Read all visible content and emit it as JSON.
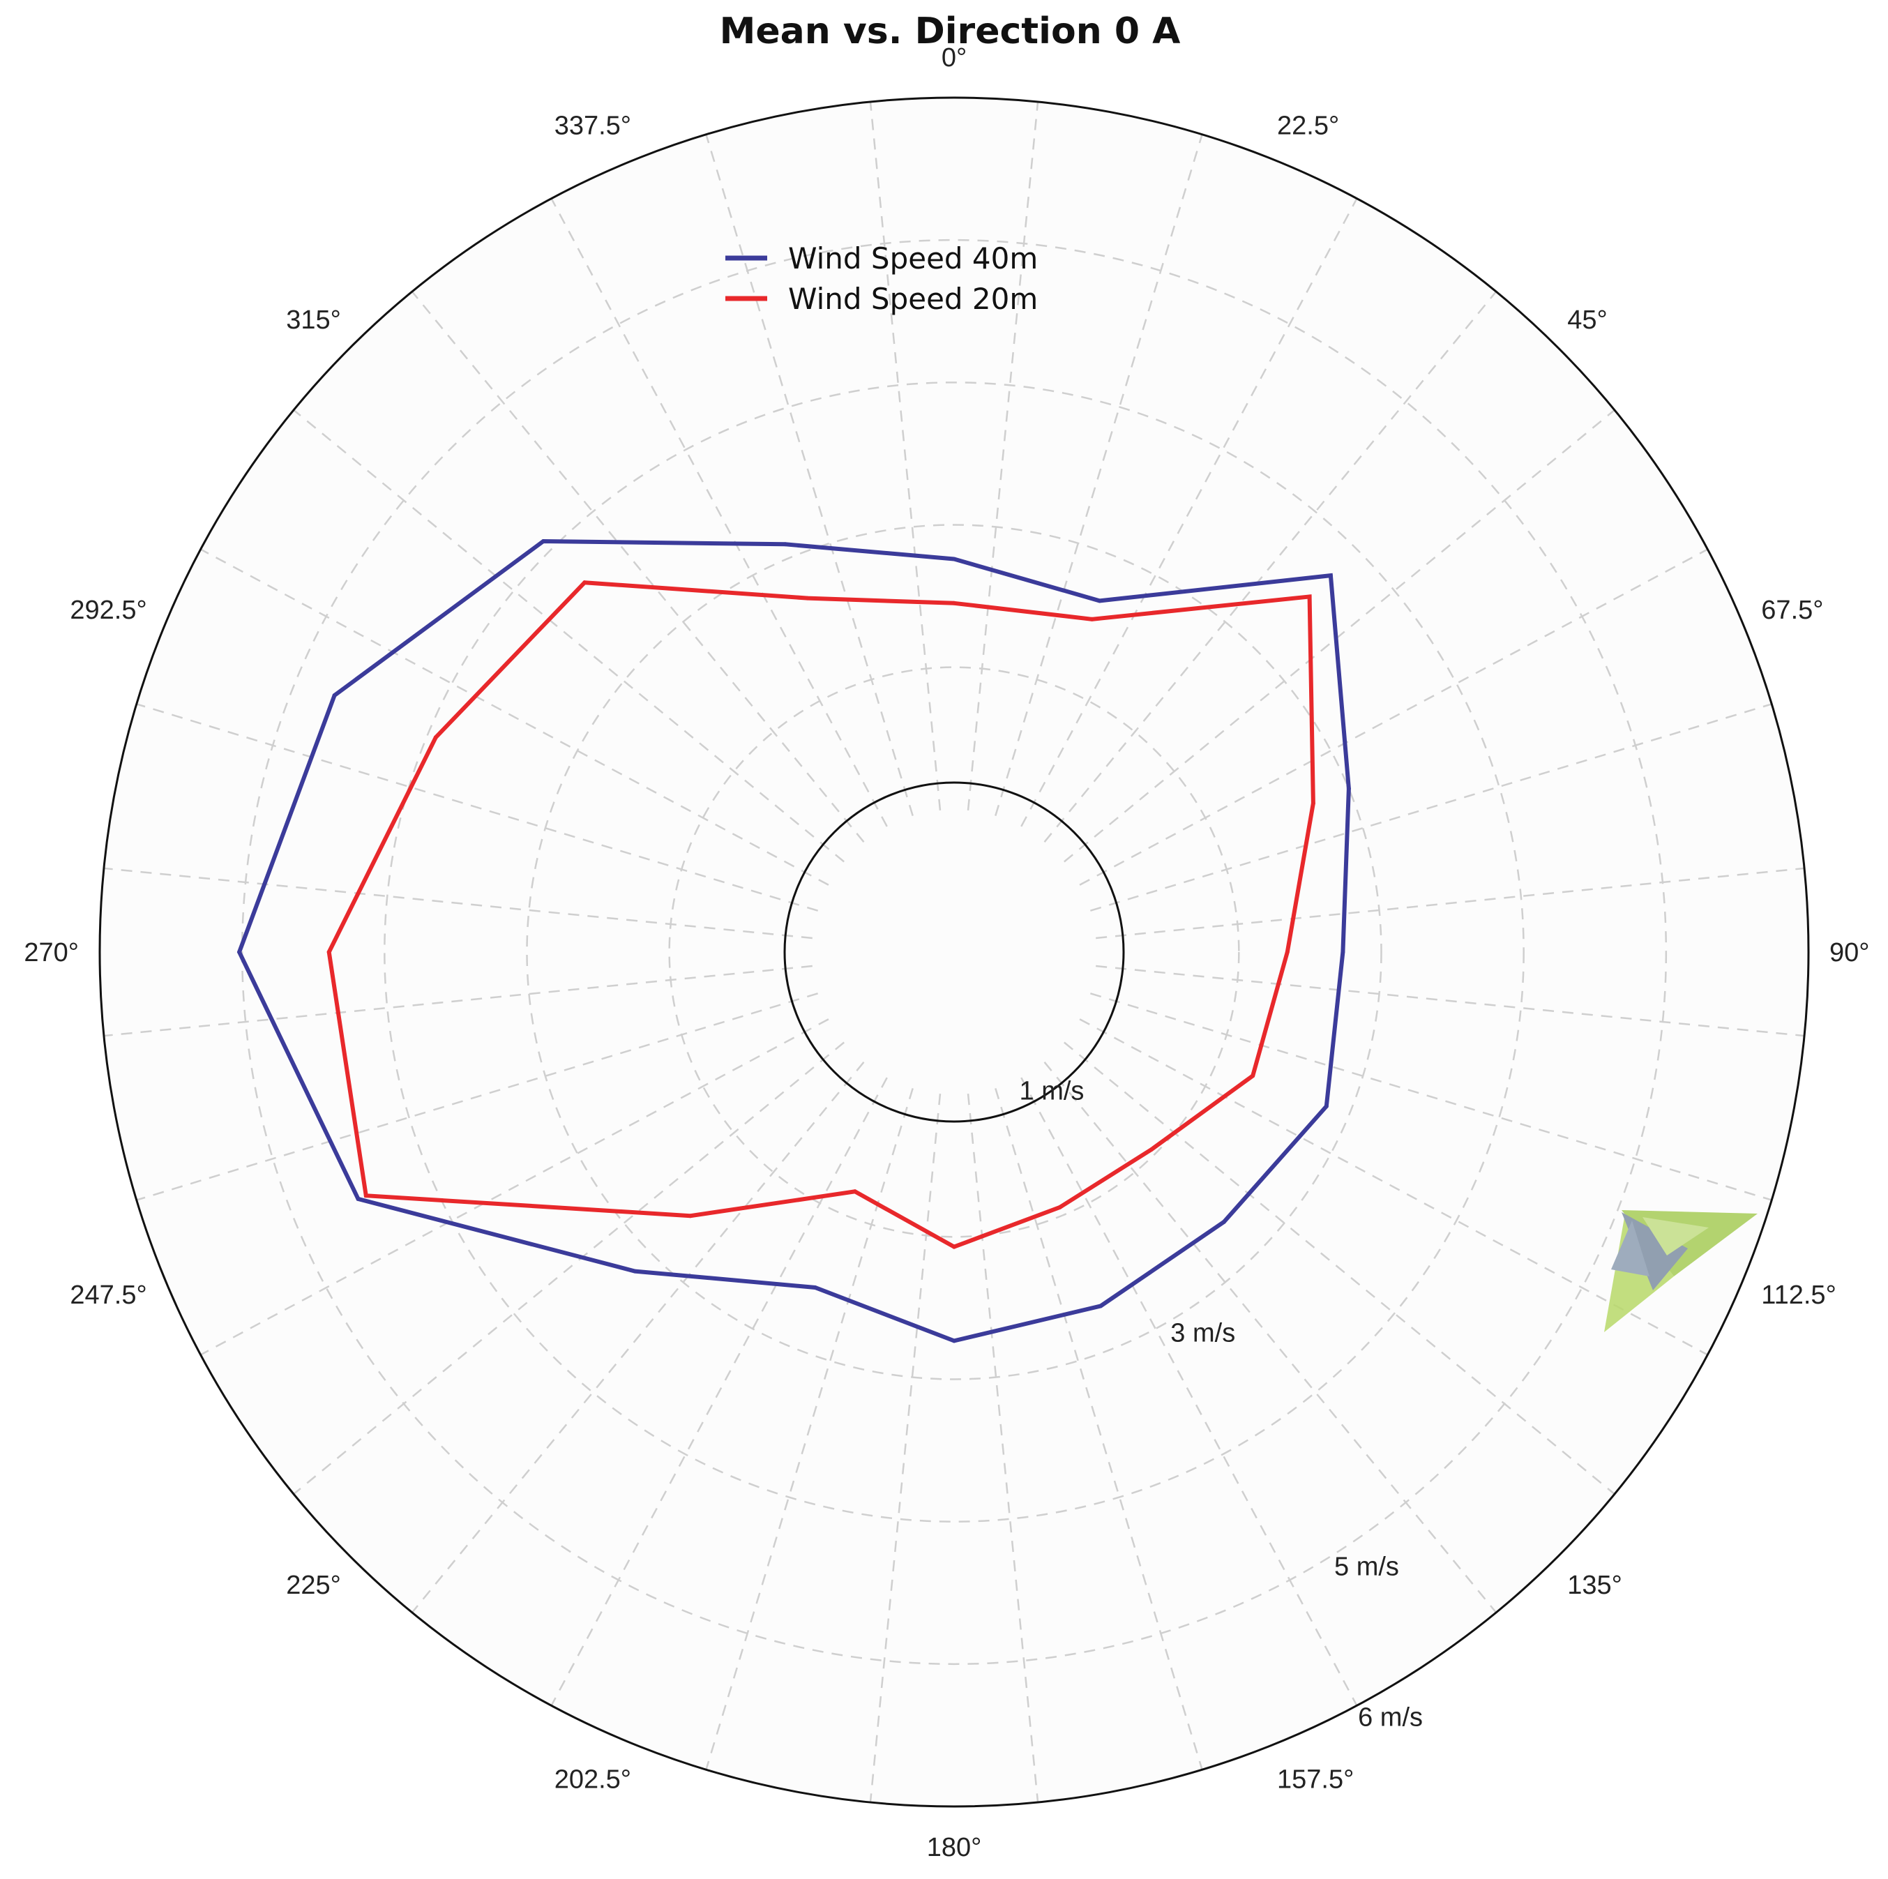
{
  "chart_data": {
    "type": "line",
    "polar": true,
    "title": "Mean vs. Direction 0 A",
    "theta_unit": "degrees",
    "angle_labels": [
      "0°",
      "22.5°",
      "45°",
      "67.5°",
      "90°",
      "112.5°",
      "135°",
      "157.5°",
      "180°",
      "202.5°",
      "225°",
      "247.5°",
      "270°",
      "292.5°",
      "315°",
      "337.5°"
    ],
    "radius_labels": [
      {
        "text": "1 m/s",
        "value": 1
      },
      {
        "text": "3 m/s",
        "value": 3
      },
      {
        "text": "5 m/s",
        "value": 5
      },
      {
        "text": "6 m/s",
        "value": 6
      }
    ],
    "rlim": [
      0,
      6
    ],
    "r_grid": [
      1,
      2,
      3,
      4,
      5
    ],
    "grid": true,
    "legend_position": "top-center",
    "series": [
      {
        "name": "Wind Speed 40m",
        "color": "#3b3b9a",
        "theta": [
          0,
          22.5,
          45,
          67.5,
          90,
          112.5,
          135,
          157.5,
          180,
          202.5,
          225,
          247.5,
          270,
          292.5,
          315,
          337.5
        ],
        "r": [
          2.76,
          2.67,
          3.74,
          3.0,
          2.73,
          2.83,
          2.68,
          2.69,
          2.73,
          2.55,
          3.17,
          4.53,
          5.02,
          4.71,
          4.08,
          3.1
        ]
      },
      {
        "name": "Wind Speed 20m",
        "color": "#e8282b",
        "theta": [
          0,
          22.5,
          45,
          67.5,
          90,
          112.5,
          135,
          157.5,
          180,
          202.5,
          225,
          247.5,
          270,
          292.5,
          315,
          337.5
        ],
        "r": [
          2.45,
          2.53,
          3.53,
          2.73,
          2.34,
          2.27,
          1.96,
          1.94,
          2.07,
          1.82,
          2.62,
          4.47,
          4.39,
          3.94,
          3.67,
          2.69
        ]
      }
    ]
  },
  "colors": {
    "background": "#ffffff",
    "plot_background": "#fcfcfc",
    "grid": "#cfcfcf",
    "axis": "#111111"
  },
  "watermark": {
    "icon": "green-gray-leaf-logo"
  }
}
